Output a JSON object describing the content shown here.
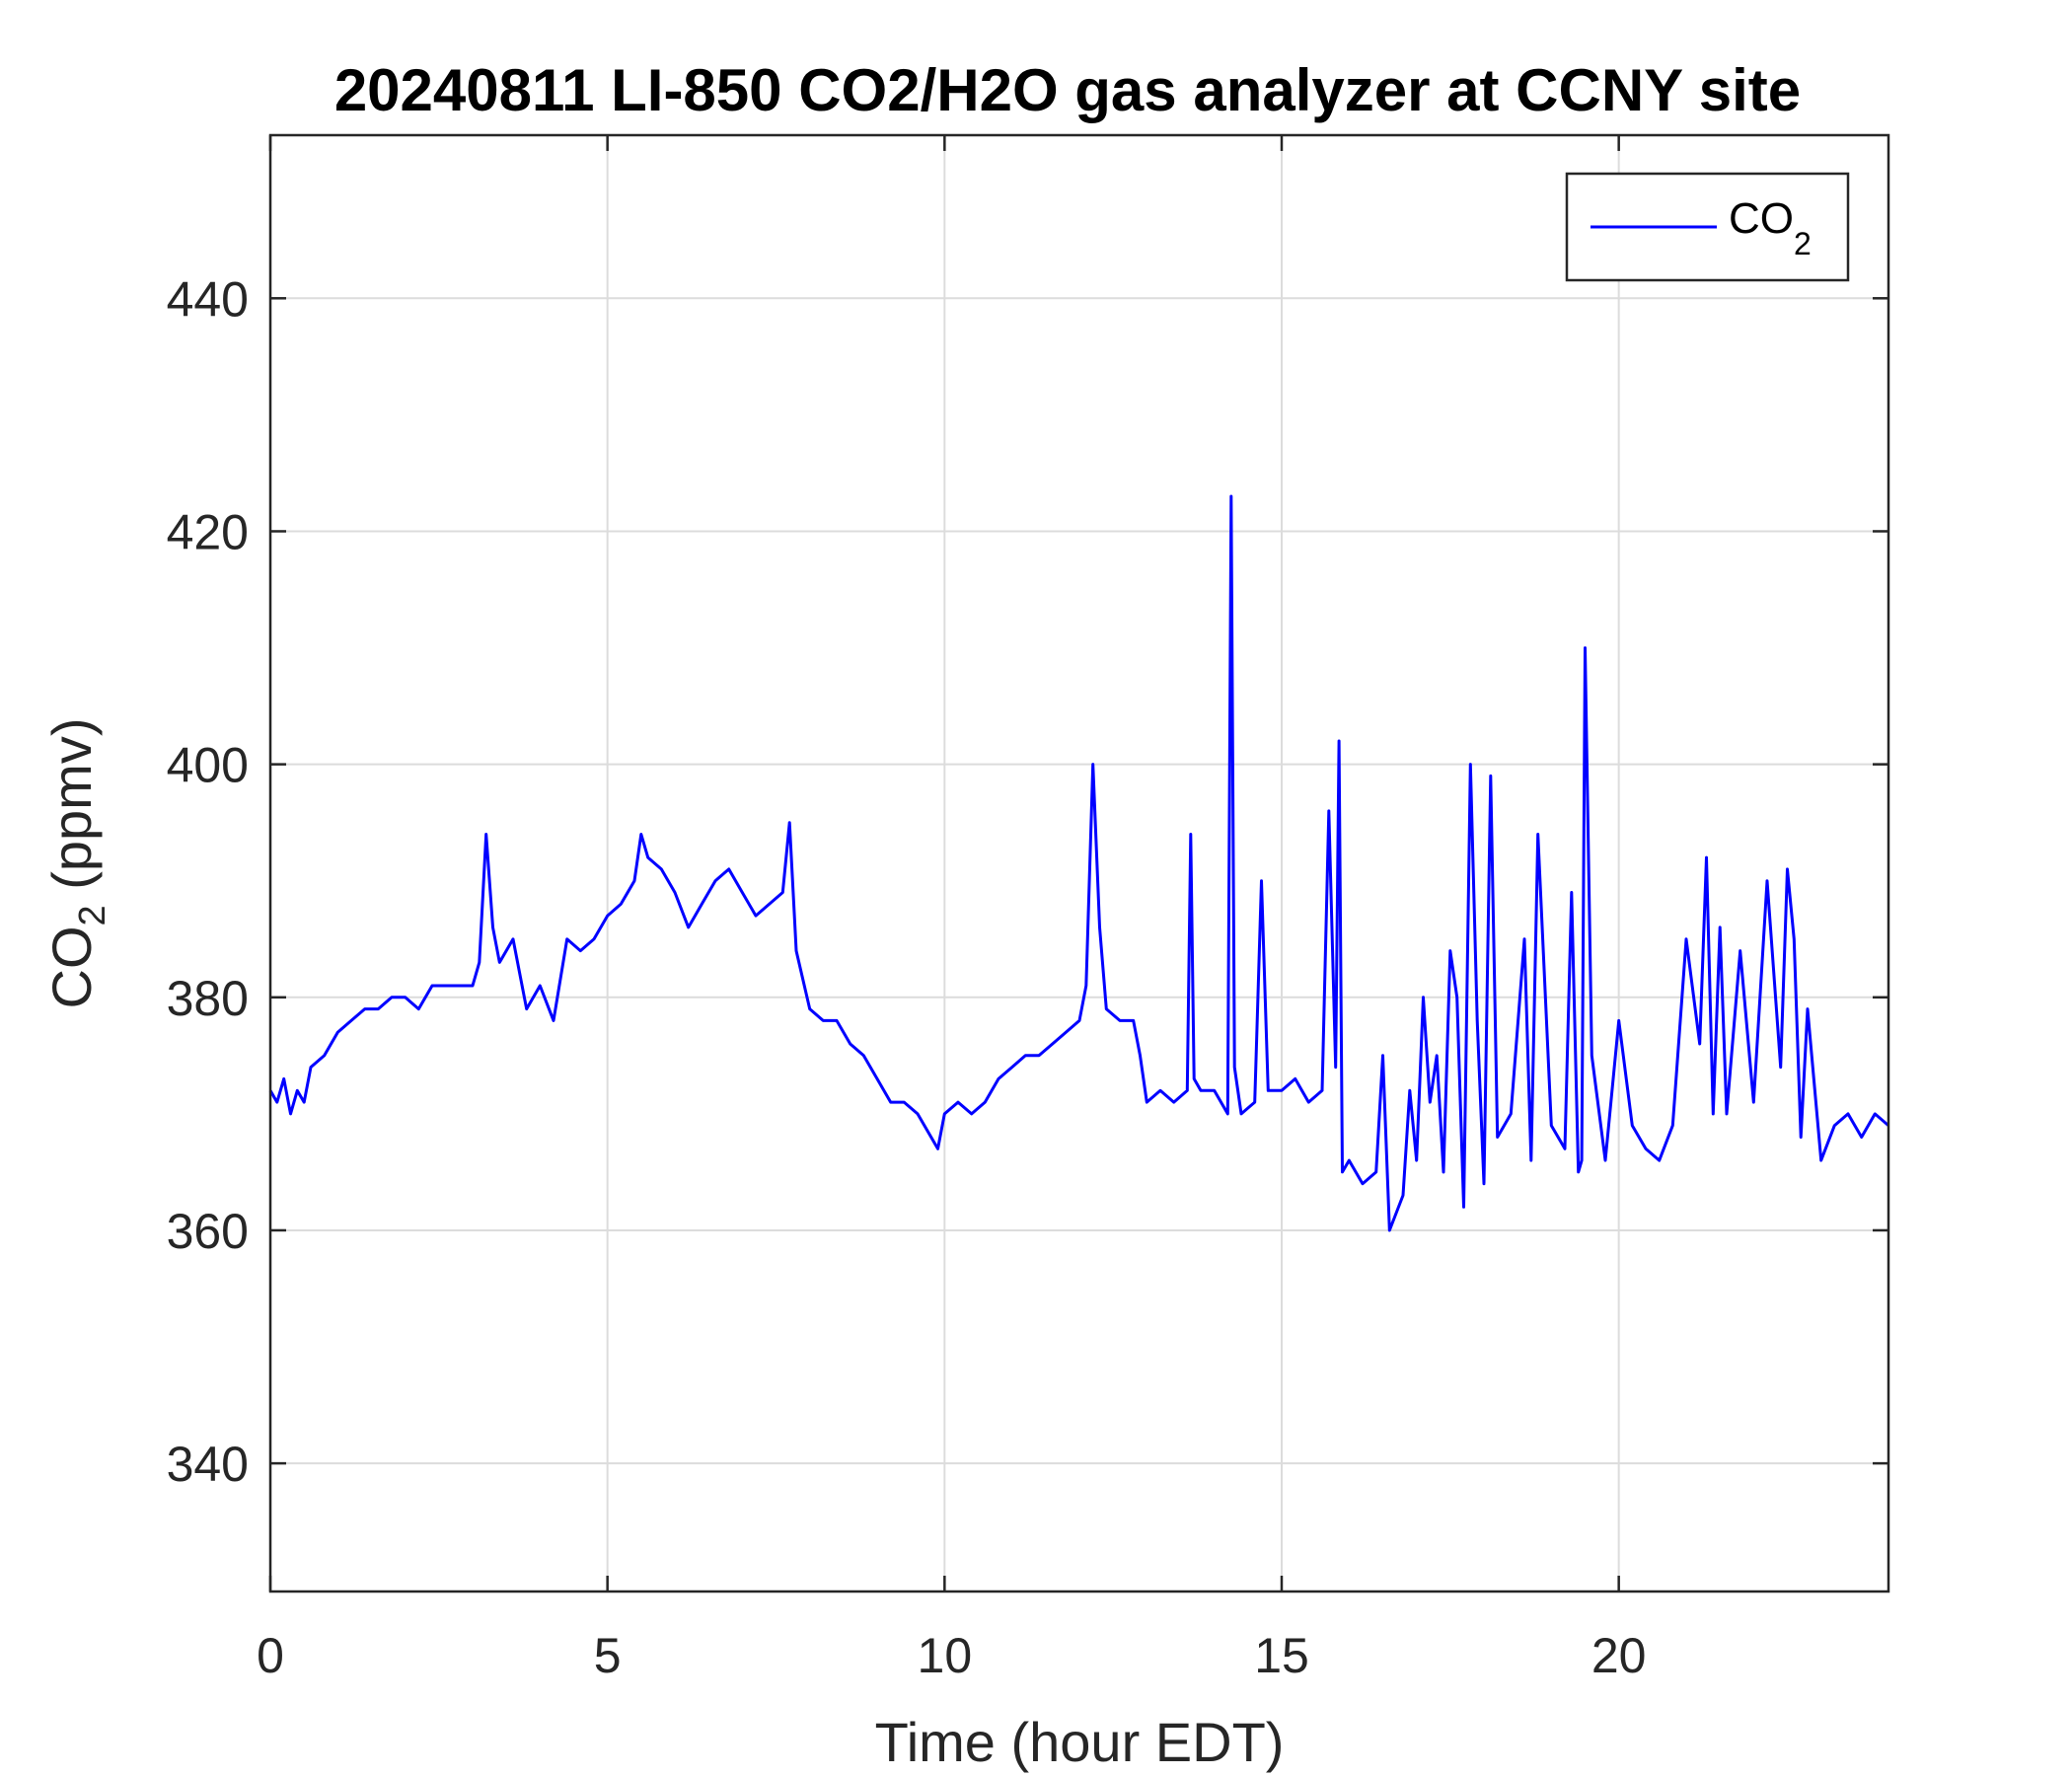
{
  "chart_data": {
    "type": "line",
    "title": "20240811 LI-850 CO2/H2O gas analyzer at CCNY site",
    "xlabel": "Time (hour EDT)",
    "ylabel": {
      "base": "CO",
      "sub": "2",
      "suffix": " (ppmv)"
    },
    "xlim": [
      0,
      24
    ],
    "ylim": [
      329,
      454
    ],
    "xticks": [
      0,
      5,
      10,
      15,
      20
    ],
    "yticks": [
      340,
      360,
      380,
      400,
      420,
      440
    ],
    "grid": true,
    "legend_position": "top-right",
    "series": [
      {
        "name": {
          "base": "CO",
          "sub": "2"
        },
        "color": "#0000ff",
        "x": [
          0,
          0.1,
          0.2,
          0.3,
          0.4,
          0.5,
          0.6,
          0.8,
          1.0,
          1.2,
          1.4,
          1.6,
          1.8,
          2.0,
          2.2,
          2.4,
          2.6,
          2.8,
          3.0,
          3.1,
          3.2,
          3.3,
          3.4,
          3.6,
          3.8,
          4.0,
          4.2,
          4.4,
          4.6,
          4.8,
          5.0,
          5.2,
          5.4,
          5.5,
          5.6,
          5.8,
          6.0,
          6.2,
          6.4,
          6.6,
          6.8,
          7.0,
          7.2,
          7.4,
          7.6,
          7.7,
          7.8,
          8.0,
          8.2,
          8.4,
          8.6,
          8.8,
          9.0,
          9.2,
          9.4,
          9.6,
          9.8,
          9.9,
          10.0,
          10.2,
          10.4,
          10.6,
          10.8,
          11.0,
          11.2,
          11.4,
          11.6,
          11.8,
          12.0,
          12.1,
          12.2,
          12.3,
          12.4,
          12.6,
          12.8,
          12.9,
          13.0,
          13.2,
          13.4,
          13.6,
          13.65,
          13.7,
          13.8,
          14.0,
          14.2,
          14.25,
          14.3,
          14.4,
          14.6,
          14.7,
          14.8,
          15.0,
          15.2,
          15.4,
          15.6,
          15.7,
          15.8,
          15.85,
          15.9,
          16.0,
          16.2,
          16.4,
          16.5,
          16.6,
          16.8,
          16.9,
          17.0,
          17.1,
          17.2,
          17.3,
          17.4,
          17.5,
          17.6,
          17.7,
          17.8,
          17.9,
          18.0,
          18.1,
          18.2,
          18.4,
          18.6,
          18.7,
          18.8,
          19.0,
          19.2,
          19.3,
          19.4,
          19.45,
          19.5,
          19.6,
          19.8,
          20.0,
          20.2,
          20.4,
          20.6,
          20.8,
          21.0,
          21.2,
          21.3,
          21.4,
          21.5,
          21.6,
          21.8,
          22.0,
          22.2,
          22.4,
          22.5,
          22.6,
          22.7,
          22.8,
          23.0,
          23.2,
          23.4,
          23.6,
          23.8,
          24.0
        ],
        "y": [
          372,
          371,
          373,
          370,
          372,
          371,
          374,
          375,
          377,
          378,
          379,
          379,
          380,
          380,
          379,
          381,
          381,
          381,
          381,
          383,
          394,
          386,
          383,
          385,
          379,
          381,
          378,
          385,
          384,
          385,
          387,
          388,
          390,
          394,
          392,
          391,
          389,
          386,
          388,
          390,
          391,
          389,
          387,
          388,
          389,
          395,
          384,
          379,
          378,
          378,
          376,
          375,
          373,
          371,
          371,
          370,
          368,
          367,
          370,
          371,
          370,
          371,
          373,
          374,
          375,
          375,
          376,
          377,
          378,
          381,
          400,
          386,
          379,
          378,
          378,
          375,
          371,
          372,
          371,
          372,
          394,
          373,
          372,
          372,
          370,
          423,
          374,
          370,
          371,
          390,
          372,
          372,
          373,
          371,
          372,
          396,
          374,
          402,
          365,
          366,
          364,
          365,
          375,
          360,
          363,
          372,
          366,
          380,
          371,
          375,
          365,
          384,
          380,
          362,
          400,
          378,
          364,
          399,
          368,
          370,
          385,
          366,
          394,
          369,
          367,
          389,
          365,
          366,
          410,
          375,
          366,
          378,
          369,
          367,
          366,
          369,
          385,
          376,
          392,
          370,
          386,
          370,
          384,
          371,
          390,
          374,
          391,
          385,
          368,
          379,
          366,
          369,
          370,
          368,
          370,
          369
        ]
      }
    ]
  }
}
